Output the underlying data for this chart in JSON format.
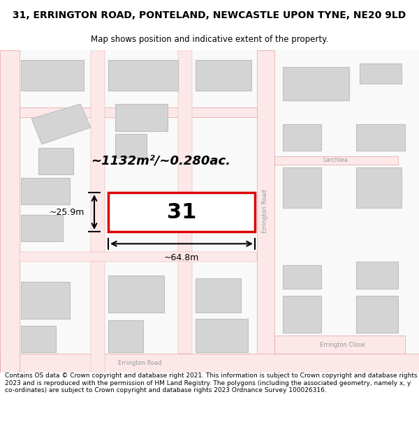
{
  "title": "31, ERRINGTON ROAD, PONTELAND, NEWCASTLE UPON TYNE, NE20 9LD",
  "subtitle": "Map shows position and indicative extent of the property.",
  "footer": "Contains OS data © Crown copyright and database right 2021. This information is subject to Crown copyright and database rights 2023 and is reproduced with the permission of HM Land Registry. The polygons (including the associated geometry, namely x, y co-ordinates) are subject to Crown copyright and database rights 2023 Ordnance Survey 100026316.",
  "bg_color": "#ffffff",
  "map_bg": "#ffffff",
  "road_line_color": "#e8a0a0",
  "building_fill": "#d4d4d4",
  "building_outline": "#c0c0c0",
  "highlight_color": "#dd0000",
  "highlight_fill": "#ffffff",
  "text_color": "#000000",
  "road_text_color": "#999999",
  "area_text": "~1132m²/~0.280ac.",
  "label_31": "31",
  "dim_width": "~64.8m",
  "dim_height": "~25.9m",
  "title_fontsize": 10,
  "subtitle_fontsize": 8.5,
  "footer_fontsize": 6.5,
  "area_fontsize": 13,
  "label_fontsize": 22,
  "dim_fontsize": 9
}
